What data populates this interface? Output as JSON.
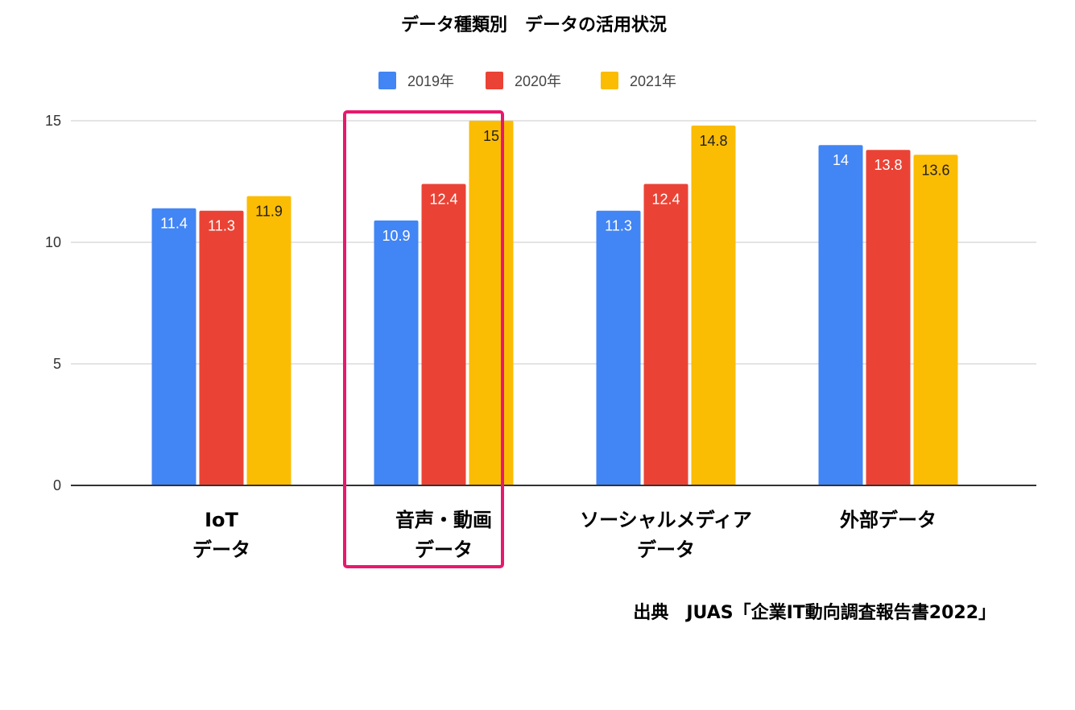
{
  "chart_data": {
    "type": "bar",
    "title": "データ種類別　データの活用状況",
    "categories": [
      [
        "IoT",
        "データ"
      ],
      [
        "音声・動画",
        "データ"
      ],
      [
        "ソーシャルメディア",
        "データ"
      ],
      [
        "外部データ"
      ]
    ],
    "series": [
      {
        "name": "2019年",
        "color": "#4285f4",
        "label_color": "#ffffff",
        "values": [
          11.4,
          10.9,
          11.3,
          14
        ]
      },
      {
        "name": "2020年",
        "color": "#ea4335",
        "label_color": "#ffffff",
        "values": [
          11.3,
          12.4,
          12.4,
          13.8
        ]
      },
      {
        "name": "2021年",
        "color": "#fbbc04",
        "label_color": "#222222",
        "values": [
          11.9,
          15,
          14.8,
          13.6
        ]
      }
    ],
    "ylim": [
      0,
      15
    ],
    "yticks": [
      0,
      5,
      10,
      15
    ],
    "grid": true,
    "legend_position": "top-center",
    "highlighted_category": 1,
    "highlight_color": "#e8186d"
  },
  "source": "出典　JUAS「企業IT動向調査報告書2022」"
}
